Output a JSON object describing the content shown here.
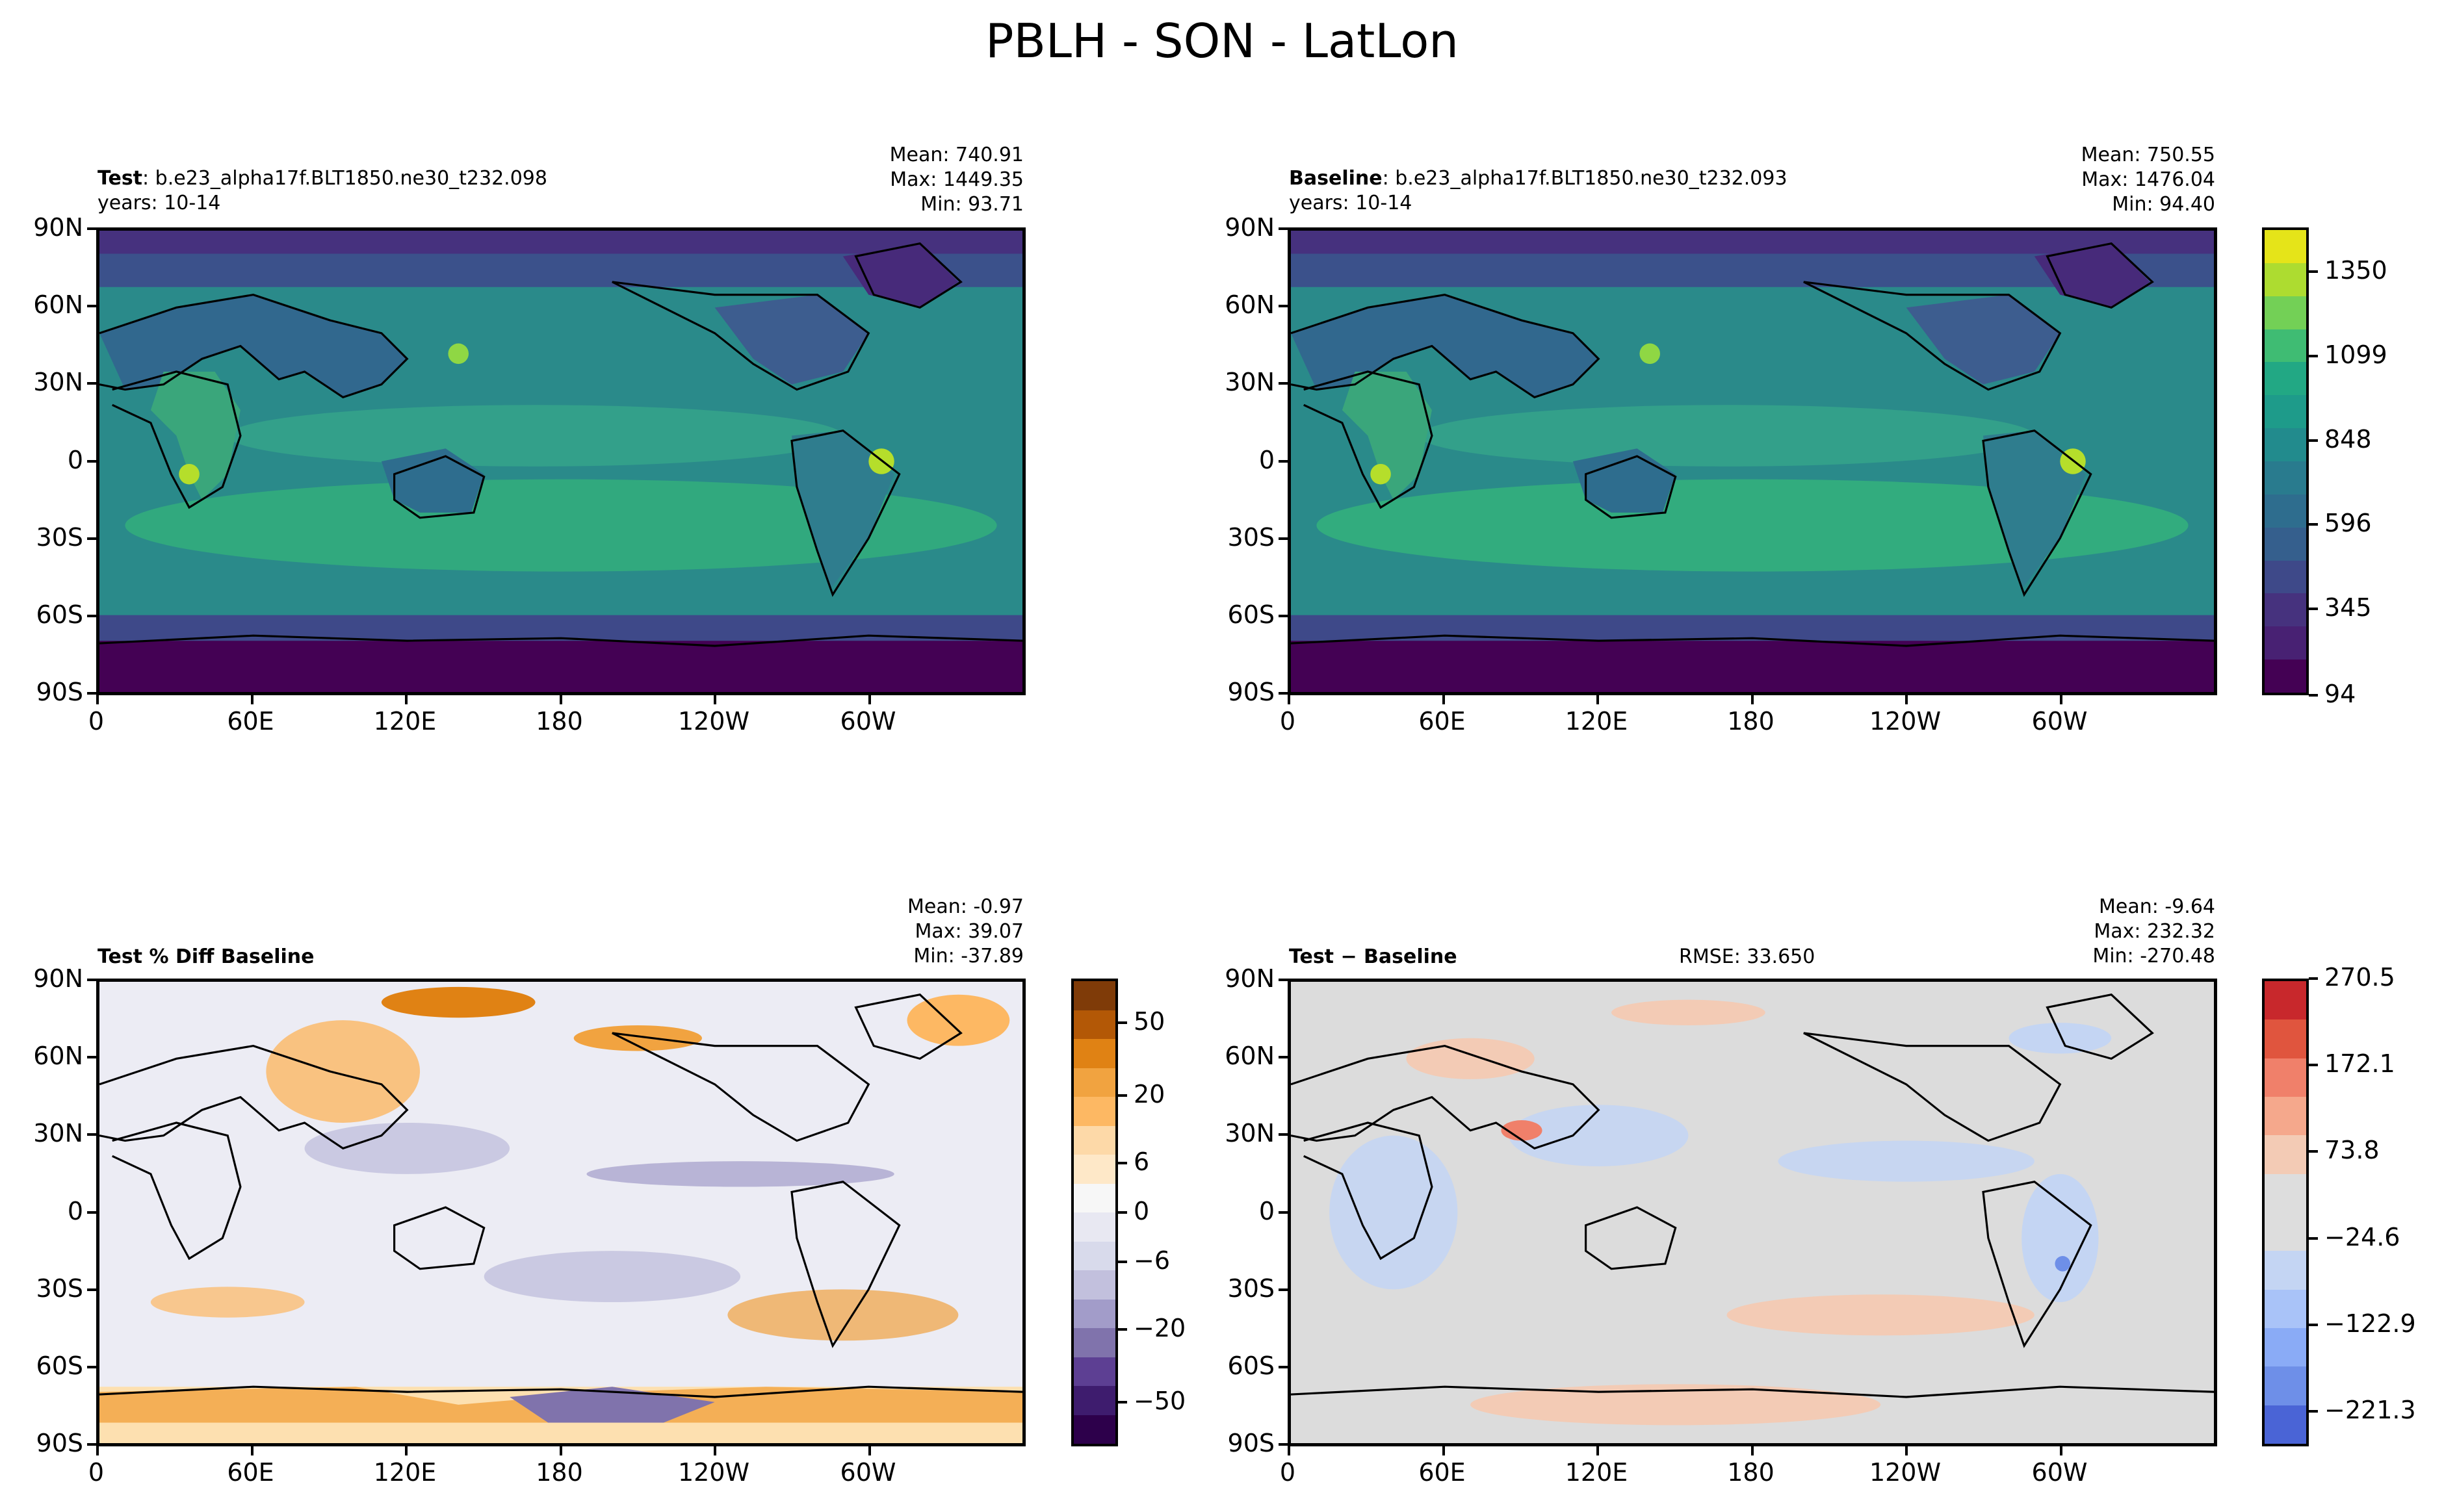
{
  "figure_title": "PBLH - SON - LatLon",
  "panels": {
    "test": {
      "label": "Test",
      "case": ": b.e23_alpha17f.BLT1850.ne30_t232.098",
      "years": "years: 10-14",
      "mean": "Mean: 740.91",
      "max": "Max: 1449.35",
      "min": "Min: 93.71"
    },
    "baseline": {
      "label": "Baseline",
      "case": ": b.e23_alpha17f.BLT1850.ne30_t232.093",
      "years": "years: 10-14",
      "mean": "Mean: 750.55",
      "max": "Max: 1476.04",
      "min": "Min: 94.40"
    },
    "pctdiff": {
      "label": "Test % Diff Baseline",
      "mean": "Mean: -0.97",
      "max": "Max: 39.07",
      "min": "Min: -37.89"
    },
    "diff": {
      "label": "Test − Baseline",
      "rmse": "RMSE: 33.650",
      "mean": "Mean: -9.64",
      "max": "Max: 232.32",
      "min": "Min: -270.48"
    }
  },
  "axes": {
    "lat_ticks": [
      "90N",
      "60N",
      "30N",
      "0",
      "30S",
      "60S",
      "90S"
    ],
    "lon_ticks": [
      "0",
      "60E",
      "120E",
      "180",
      "120W",
      "60W"
    ]
  },
  "colorbars": {
    "field": {
      "labels": [
        "1350",
        "1099",
        "848",
        "596",
        "345",
        "94"
      ],
      "colors": [
        "#e5e419",
        "#addc30",
        "#73d056",
        "#3fbc73",
        "#22a884",
        "#1e9b8a",
        "#228b8d",
        "#297b8e",
        "#2e6d8e",
        "#355f8d",
        "#3e4989",
        "#46327e",
        "#482173",
        "#440154"
      ]
    },
    "pctdiff": {
      "labels": [
        "50",
        "20",
        "6",
        "0",
        "−6",
        "−20",
        "−50"
      ],
      "colors": [
        "#7f3b08",
        "#b35806",
        "#e08214",
        "#f1a340",
        "#fdb863",
        "#fdd9a8",
        "#fee8c8",
        "#f7f7f7",
        "#e8e8f2",
        "#d8daeb",
        "#c2c0dd",
        "#a29cc9",
        "#8073ac",
        "#5d3f93",
        "#3e1c6e",
        "#2d004b"
      ]
    },
    "diff": {
      "labels": [
        "270.5",
        "172.1",
        "73.8",
        "−24.6",
        "−122.9",
        "−221.3"
      ],
      "colors": [
        "#c8282c",
        "#e0553e",
        "#f0806a",
        "#f5a88c",
        "#f3cbb5",
        "#dddddd",
        "#dddddd",
        "#c4d5f3",
        "#a9c3f8",
        "#8aabf6",
        "#6e8fe8",
        "#4a64d6"
      ]
    }
  },
  "map_colors": {
    "test_base": "#2f8f8a",
    "pctdiff_base": "#ececf4",
    "diff_base": "#dcdcdc",
    "coast": "#000000"
  }
}
